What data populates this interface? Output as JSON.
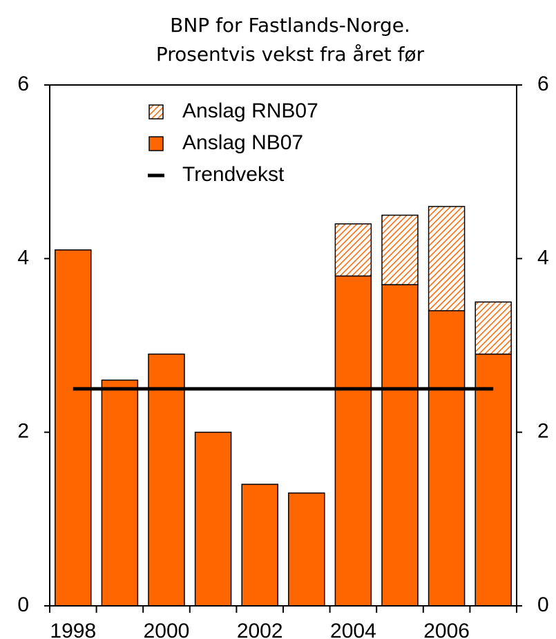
{
  "chart_data": {
    "type": "bar",
    "title": [
      "BNP for Fastlands-Norge.",
      "Prosentvis vekst fra året før"
    ],
    "categories": [
      "1998",
      null,
      "2000",
      null,
      "2002",
      null,
      "2004",
      null,
      "2006",
      null
    ],
    "series": [
      {
        "name": "Anslag NB07",
        "color": "#ff6600",
        "values": [
          4.1,
          2.6,
          2.9,
          2.0,
          1.4,
          1.3,
          3.8,
          3.7,
          3.4,
          2.9
        ]
      },
      {
        "name": "Anslag RNB07",
        "color": "#ff6600",
        "pattern": "hatch",
        "values": [
          null,
          null,
          null,
          null,
          null,
          null,
          0.6,
          0.8,
          1.2,
          0.6
        ]
      },
      {
        "name": "Trendvekst",
        "type": "line",
        "color": "#000000",
        "values": [
          2.5,
          2.5,
          2.5,
          2.5,
          2.5,
          2.5,
          2.5,
          2.5,
          2.5,
          2.5
        ]
      }
    ],
    "ylim": [
      0,
      6
    ],
    "yticks": [
      0,
      2,
      4,
      6
    ],
    "y2lim": [
      0,
      6
    ],
    "y2ticks": [
      0,
      2,
      4,
      6
    ],
    "legend": "top"
  }
}
